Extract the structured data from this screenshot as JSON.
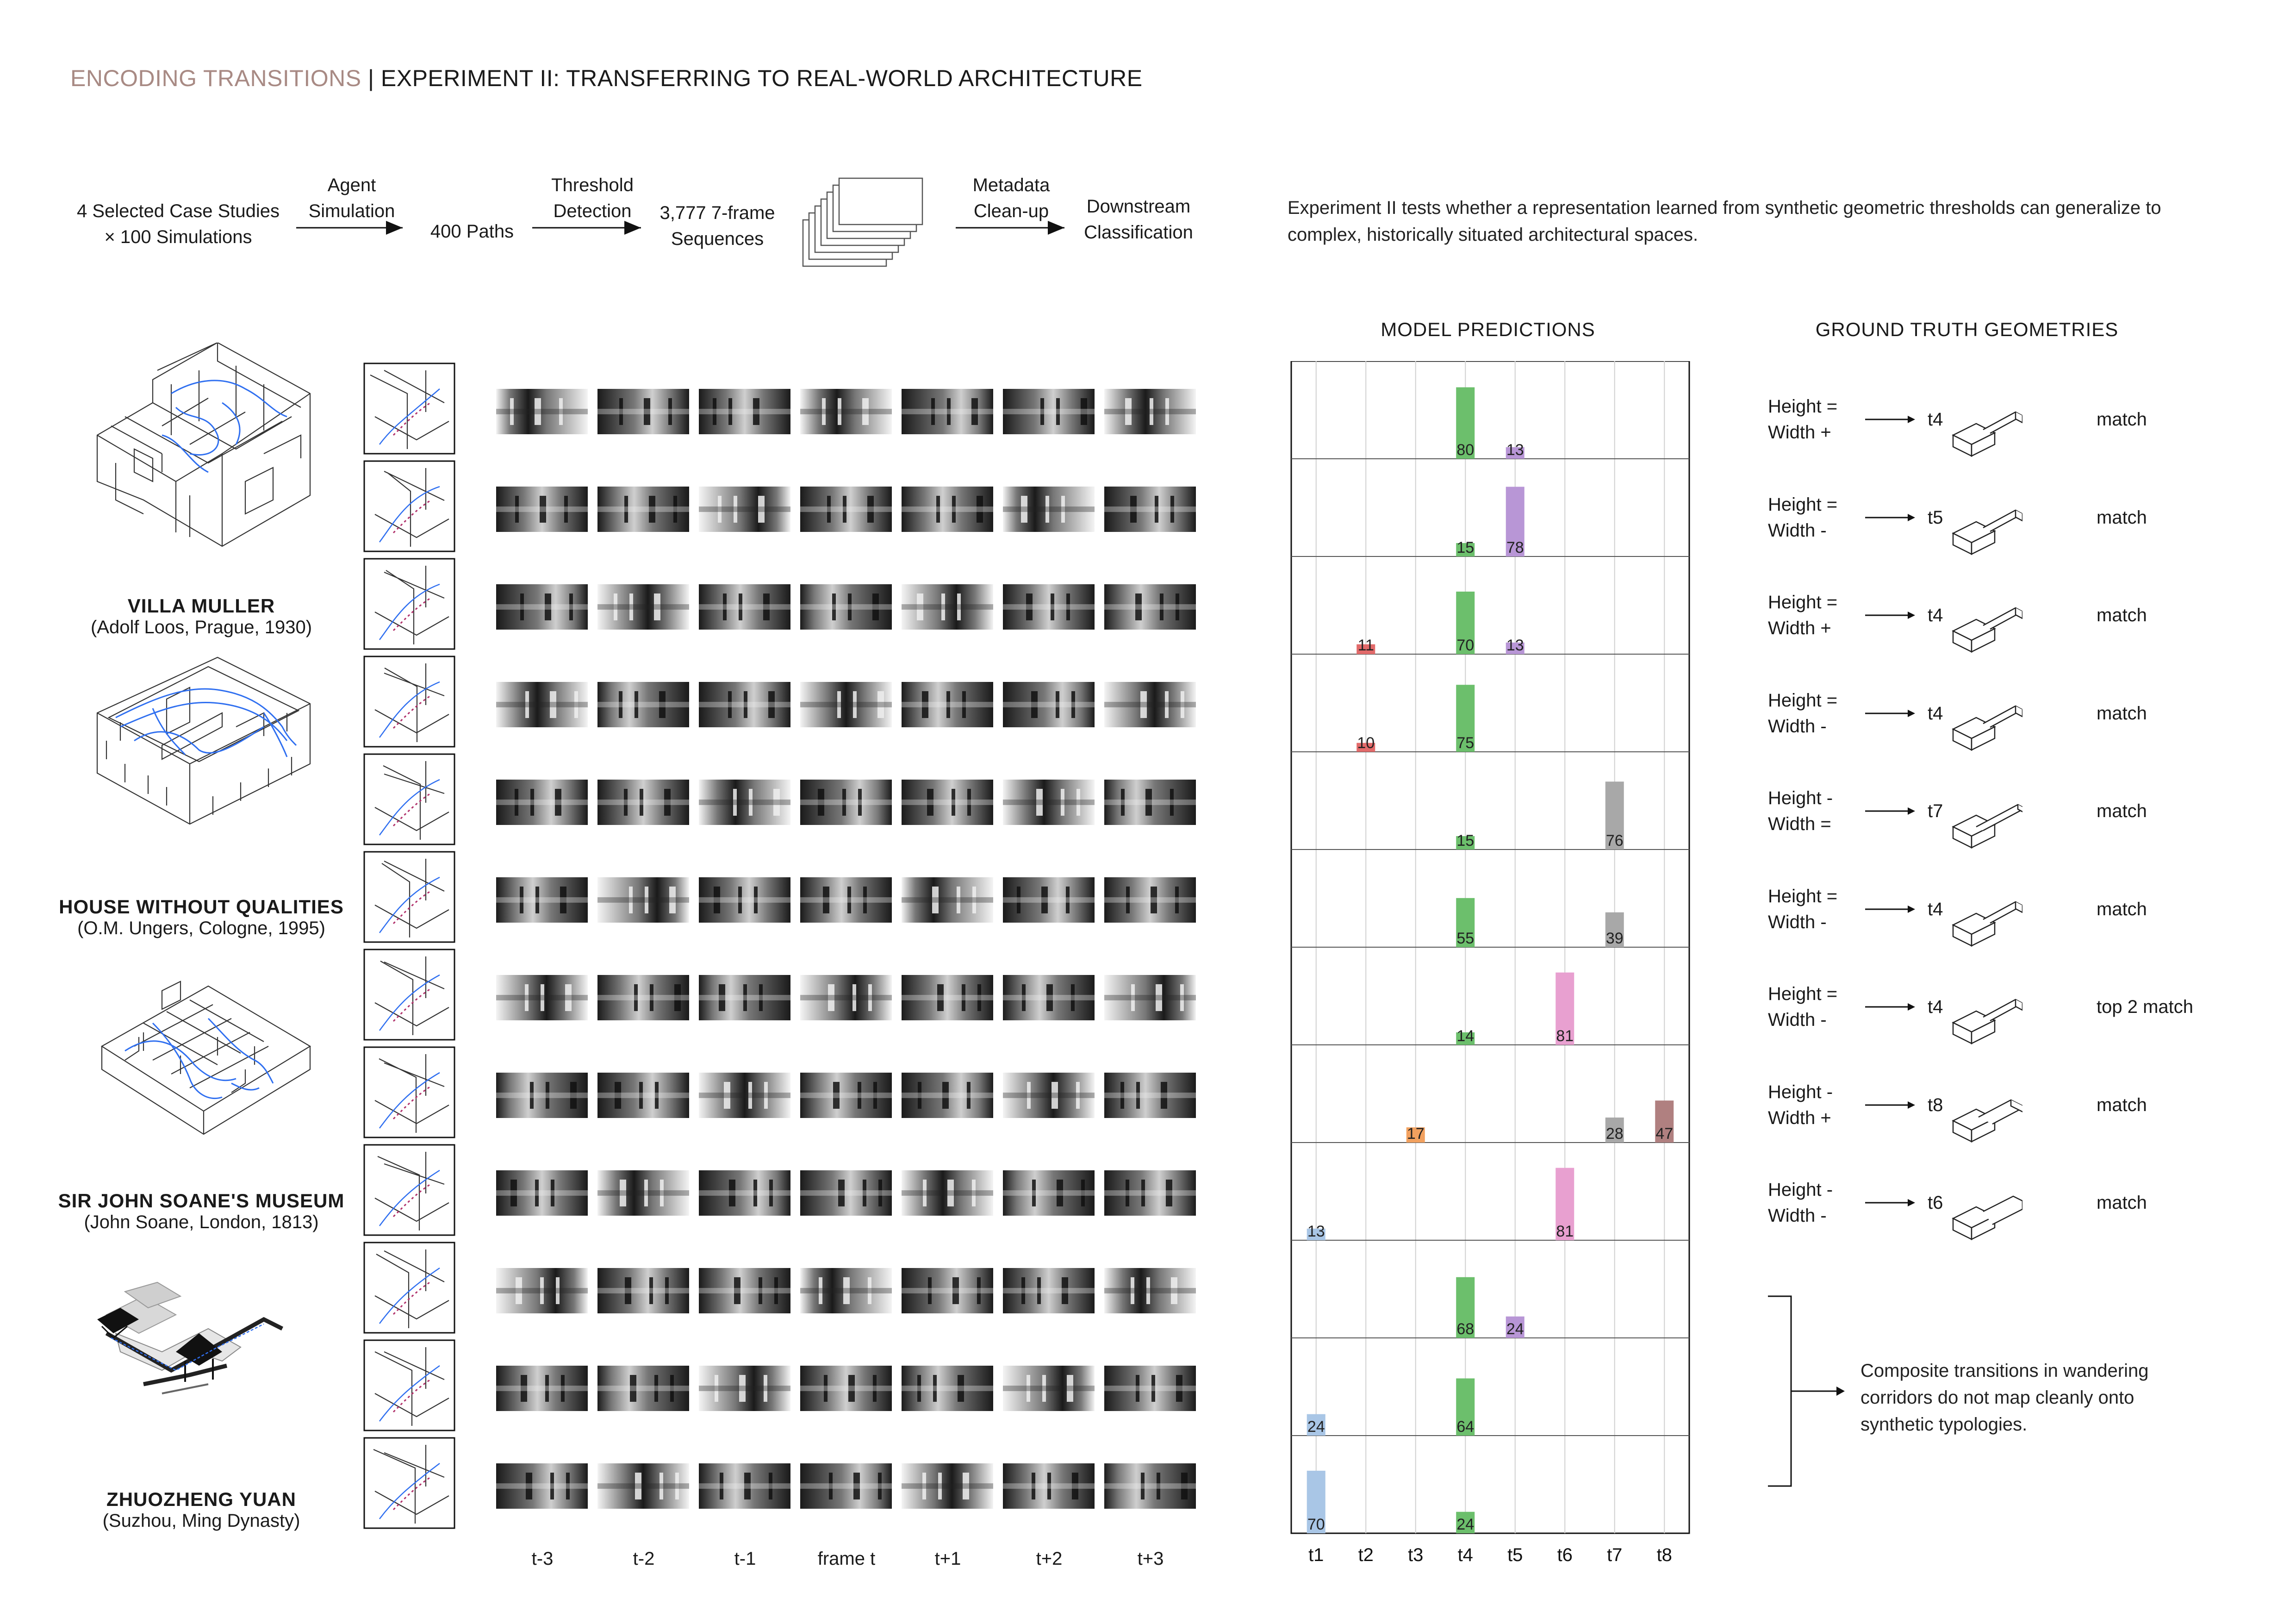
{
  "title": {
    "accent": "ENCODING TRANSITIONS",
    "rest": " | EXPERIMENT II: TRANSFERRING TO REAL-WORLD ARCHITECTURE"
  },
  "pipeline": {
    "step1": [
      "4 Selected Case Studies",
      "× 100 Simulations"
    ],
    "arrow1": [
      "Agent",
      "Simulation"
    ],
    "step2": "400 Paths",
    "arrow2": [
      "Threshold",
      "Detection"
    ],
    "step3": [
      "3,777 7-frame",
      "Sequences"
    ],
    "arrow3": [
      "Metadata",
      "Clean-up"
    ],
    "step4": [
      "Downstream",
      "Classification"
    ]
  },
  "description": [
    "Experiment II tests whether a representation learned from synthetic geometric thresholds can generalize to",
    "complex, historically situated architectural spaces."
  ],
  "headers": {
    "predictions": "MODEL PREDICTIONS",
    "ground_truth": "GROUND TRUTH GEOMETRIES"
  },
  "buildings": [
    {
      "name": "VILLA MULLER",
      "sub": "(Adolf Loos, Prague, 1930)"
    },
    {
      "name": "HOUSE WITHOUT QUALITIES",
      "sub": "(O.M. Ungers, Cologne, 1995)"
    },
    {
      "name": "SIR JOHN SOANE'S MUSEUM",
      "sub": "(John Soane, London, 1813)"
    },
    {
      "name": "ZHUOZHENG YUAN",
      "sub": "(Suzhou, Ming Dynasty)"
    }
  ],
  "frame_labels": [
    "t-3",
    "t-2",
    "t-1",
    "frame t",
    "t+1",
    "t+2",
    "t+3"
  ],
  "chart_data": {
    "type": "bar",
    "title": "MODEL PREDICTIONS",
    "categories": [
      "t1",
      "t2",
      "t3",
      "t4",
      "t5",
      "t6",
      "t7",
      "t8"
    ],
    "colors": {
      "t1": "#a9c6e6",
      "t2": "#e26a6a",
      "t3": "#f2a15f",
      "t4": "#6cbf6c",
      "t5": "#b896d6",
      "t6": "#e8a0d0",
      "t7": "#a8a8a8",
      "t8": "#b08080"
    },
    "ylim": [
      0,
      100
    ],
    "rows": [
      {
        "bars": [
          {
            "cat": "t4",
            "value": 80
          },
          {
            "cat": "t5",
            "value": 13
          }
        ]
      },
      {
        "bars": [
          {
            "cat": "t4",
            "value": 15
          },
          {
            "cat": "t5",
            "value": 78
          }
        ]
      },
      {
        "bars": [
          {
            "cat": "t2",
            "value": 11
          },
          {
            "cat": "t4",
            "value": 70
          },
          {
            "cat": "t5",
            "value": 13
          }
        ]
      },
      {
        "bars": [
          {
            "cat": "t2",
            "value": 10
          },
          {
            "cat": "t4",
            "value": 75
          }
        ]
      },
      {
        "bars": [
          {
            "cat": "t4",
            "value": 15
          },
          {
            "cat": "t7",
            "value": 76
          }
        ]
      },
      {
        "bars": [
          {
            "cat": "t4",
            "value": 55
          },
          {
            "cat": "t7",
            "value": 39
          }
        ]
      },
      {
        "bars": [
          {
            "cat": "t4",
            "value": 14
          },
          {
            "cat": "t6",
            "value": 81
          }
        ]
      },
      {
        "bars": [
          {
            "cat": "t3",
            "value": 17
          },
          {
            "cat": "t7",
            "value": 28
          },
          {
            "cat": "t8",
            "value": 47
          }
        ]
      },
      {
        "bars": [
          {
            "cat": "t1",
            "value": 13
          },
          {
            "cat": "t6",
            "value": 81
          }
        ]
      },
      {
        "bars": [
          {
            "cat": "t4",
            "value": 68
          },
          {
            "cat": "t5",
            "value": 24
          }
        ]
      },
      {
        "bars": [
          {
            "cat": "t1",
            "value": 24
          },
          {
            "cat": "t4",
            "value": 64
          }
        ]
      },
      {
        "bars": [
          {
            "cat": "t1",
            "value": 70
          },
          {
            "cat": "t4",
            "value": 24
          }
        ]
      }
    ]
  },
  "ground_truth": [
    {
      "h": "Height =",
      "w": "Width +",
      "t": "t4",
      "result": "match",
      "shape": "narrow-end"
    },
    {
      "h": "Height =",
      "w": "Width -",
      "t": "t5",
      "result": "match",
      "shape": "narrow-end"
    },
    {
      "h": "Height =",
      "w": "Width +",
      "t": "t4",
      "result": "match",
      "shape": "narrow-end"
    },
    {
      "h": "Height =",
      "w": "Width -",
      "t": "t4",
      "result": "match",
      "shape": "narrow-end"
    },
    {
      "h": "Height -",
      "w": "Width =",
      "t": "t7",
      "result": "match",
      "shape": "low-end"
    },
    {
      "h": "Height =",
      "w": "Width -",
      "t": "t4",
      "result": "match",
      "shape": "narrow-end"
    },
    {
      "h": "Height =",
      "w": "Width -",
      "t": "t4",
      "result": "top 2 match",
      "shape": "narrow-end"
    },
    {
      "h": "Height -",
      "w": "Width +",
      "t": "t8",
      "result": "match",
      "shape": "low-wide"
    },
    {
      "h": "Height -",
      "w": "Width -",
      "t": "t6",
      "result": "match",
      "shape": "small-end"
    }
  ],
  "composite_note": [
    "Composite transitions in wandering",
    "corridors do not map cleanly onto",
    "synthetic typologies."
  ]
}
